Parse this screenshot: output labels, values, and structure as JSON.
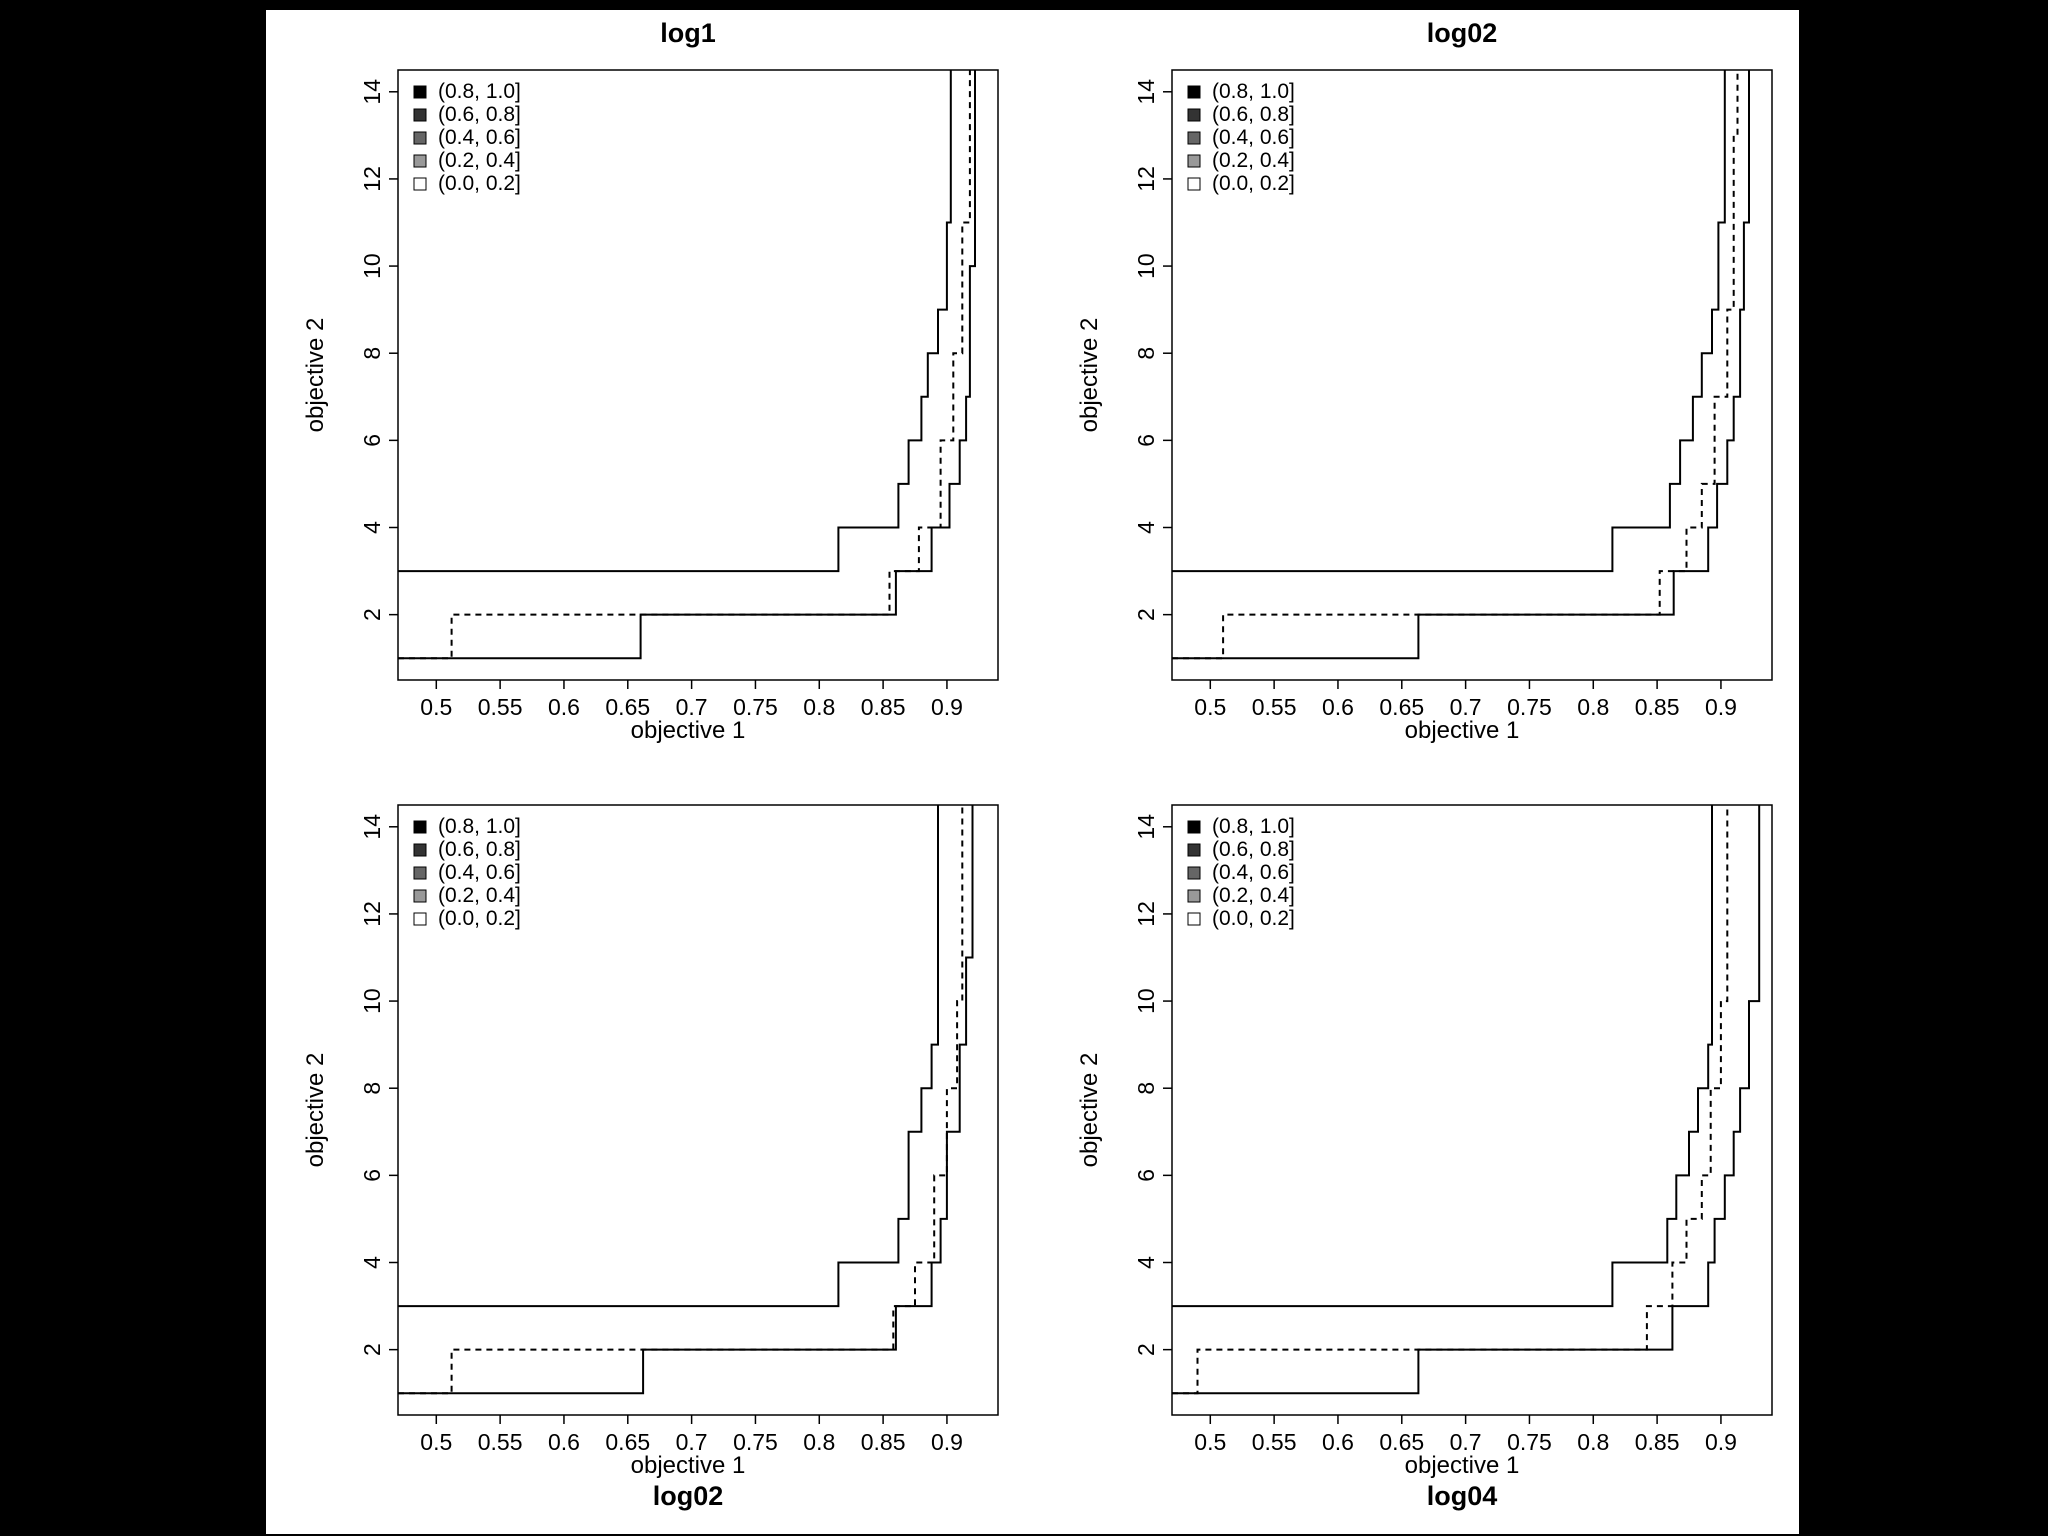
{
  "chart_data": [
    {
      "type": "line",
      "title": "log1",
      "xlabel": "objective 1",
      "ylabel": "objective 2",
      "xlim": [
        0.47,
        0.94
      ],
      "ylim": [
        0.5,
        14.5
      ],
      "xticks": [
        "0.5",
        "0.55",
        "0.6",
        "0.65",
        "0.7",
        "0.75",
        "0.8",
        "0.85",
        "0.9"
      ],
      "yticks": [
        "2",
        "4",
        "6",
        "8",
        "10",
        "12",
        "14"
      ],
      "legend": {
        "position": "top-left",
        "entries": [
          "(0.8, 1.0]",
          "(0.6, 0.8]",
          "(0.4, 0.6]",
          "(0.2, 0.4]",
          "(0.0, 0.2]"
        ],
        "colors": [
          "#000000",
          "#333333",
          "#666666",
          "#999999",
          "#ffffff"
        ]
      },
      "series": [
        {
          "style": "solid",
          "points": [
            [
              0.47,
              1
            ],
            [
              0.66,
              1
            ],
            [
              0.66,
              2
            ],
            [
              0.86,
              2
            ],
            [
              0.86,
              3
            ],
            [
              0.888,
              3
            ],
            [
              0.888,
              4
            ],
            [
              0.902,
              4
            ],
            [
              0.902,
              5
            ],
            [
              0.91,
              5
            ],
            [
              0.91,
              6
            ],
            [
              0.915,
              6
            ],
            [
              0.915,
              7
            ],
            [
              0.918,
              7
            ],
            [
              0.918,
              10
            ],
            [
              0.922,
              10
            ],
            [
              0.922,
              11
            ],
            [
              0.922,
              14.5
            ]
          ]
        },
        {
          "style": "dashed",
          "points": [
            [
              0.47,
              1
            ],
            [
              0.512,
              1
            ],
            [
              0.512,
              2
            ],
            [
              0.855,
              2
            ],
            [
              0.855,
              3
            ],
            [
              0.878,
              3
            ],
            [
              0.878,
              4
            ],
            [
              0.895,
              4
            ],
            [
              0.895,
              6
            ],
            [
              0.905,
              6
            ],
            [
              0.905,
              8
            ],
            [
              0.912,
              8
            ],
            [
              0.912,
              11
            ],
            [
              0.918,
              11
            ],
            [
              0.918,
              14.5
            ]
          ]
        },
        {
          "style": "solid",
          "points": [
            [
              0.47,
              3
            ],
            [
              0.815,
              3
            ],
            [
              0.815,
              4
            ],
            [
              0.862,
              4
            ],
            [
              0.862,
              5
            ],
            [
              0.87,
              5
            ],
            [
              0.87,
              6
            ],
            [
              0.88,
              6
            ],
            [
              0.88,
              7
            ],
            [
              0.885,
              7
            ],
            [
              0.885,
              8
            ],
            [
              0.893,
              8
            ],
            [
              0.893,
              9
            ],
            [
              0.9,
              9
            ],
            [
              0.9,
              11
            ],
            [
              0.903,
              11
            ],
            [
              0.903,
              14.5
            ]
          ]
        }
      ]
    },
    {
      "type": "line",
      "title": "log02",
      "xlabel": "objective 1",
      "ylabel": "objective 2",
      "xlim": [
        0.47,
        0.94
      ],
      "ylim": [
        0.5,
        14.5
      ],
      "xticks": [
        "0.5",
        "0.55",
        "0.6",
        "0.65",
        "0.7",
        "0.75",
        "0.8",
        "0.85",
        "0.9"
      ],
      "yticks": [
        "2",
        "4",
        "6",
        "8",
        "10",
        "12",
        "14"
      ],
      "legend": {
        "position": "top-left",
        "entries": [
          "(0.8, 1.0]",
          "(0.6, 0.8]",
          "(0.4, 0.6]",
          "(0.2, 0.4]",
          "(0.0, 0.2]"
        ],
        "colors": [
          "#000000",
          "#333333",
          "#666666",
          "#999999",
          "#ffffff"
        ]
      },
      "series": [
        {
          "style": "solid",
          "points": [
            [
              0.47,
              1
            ],
            [
              0.663,
              1
            ],
            [
              0.663,
              2
            ],
            [
              0.863,
              2
            ],
            [
              0.863,
              3
            ],
            [
              0.89,
              3
            ],
            [
              0.89,
              4
            ],
            [
              0.897,
              4
            ],
            [
              0.897,
              5
            ],
            [
              0.905,
              5
            ],
            [
              0.905,
              6
            ],
            [
              0.91,
              6
            ],
            [
              0.91,
              7
            ],
            [
              0.915,
              7
            ],
            [
              0.915,
              9
            ],
            [
              0.918,
              9
            ],
            [
              0.918,
              11
            ],
            [
              0.922,
              11
            ],
            [
              0.922,
              14.5
            ]
          ]
        },
        {
          "style": "dashed",
          "points": [
            [
              0.47,
              1
            ],
            [
              0.51,
              1
            ],
            [
              0.51,
              2
            ],
            [
              0.852,
              2
            ],
            [
              0.852,
              3
            ],
            [
              0.873,
              3
            ],
            [
              0.873,
              4
            ],
            [
              0.885,
              4
            ],
            [
              0.885,
              5
            ],
            [
              0.895,
              5
            ],
            [
              0.895,
              7
            ],
            [
              0.905,
              7
            ],
            [
              0.905,
              9
            ],
            [
              0.91,
              9
            ],
            [
              0.91,
              13
            ],
            [
              0.913,
              13
            ],
            [
              0.913,
              14.5
            ]
          ]
        },
        {
          "style": "solid",
          "points": [
            [
              0.47,
              3
            ],
            [
              0.815,
              3
            ],
            [
              0.815,
              4
            ],
            [
              0.86,
              4
            ],
            [
              0.86,
              5
            ],
            [
              0.868,
              5
            ],
            [
              0.868,
              6
            ],
            [
              0.878,
              6
            ],
            [
              0.878,
              7
            ],
            [
              0.885,
              7
            ],
            [
              0.885,
              8
            ],
            [
              0.893,
              8
            ],
            [
              0.893,
              9
            ],
            [
              0.898,
              9
            ],
            [
              0.898,
              11
            ],
            [
              0.903,
              11
            ],
            [
              0.903,
              14.5
            ]
          ]
        }
      ]
    },
    {
      "type": "line",
      "title": "log02",
      "xlabel": "objective 1",
      "ylabel": "objective 2",
      "xlim": [
        0.47,
        0.94
      ],
      "ylim": [
        0.5,
        14.5
      ],
      "xticks": [
        "0.5",
        "0.55",
        "0.6",
        "0.65",
        "0.7",
        "0.75",
        "0.8",
        "0.85",
        "0.9"
      ],
      "yticks": [
        "2",
        "4",
        "6",
        "8",
        "10",
        "12",
        "14"
      ],
      "legend": {
        "position": "top-left",
        "entries": [
          "(0.8, 1.0]",
          "(0.6, 0.8]",
          "(0.4, 0.6]",
          "(0.2, 0.4]",
          "(0.0, 0.2]"
        ],
        "colors": [
          "#000000",
          "#333333",
          "#666666",
          "#999999",
          "#ffffff"
        ]
      },
      "series": [
        {
          "style": "solid",
          "points": [
            [
              0.47,
              1
            ],
            [
              0.662,
              1
            ],
            [
              0.662,
              2
            ],
            [
              0.86,
              2
            ],
            [
              0.86,
              3
            ],
            [
              0.888,
              3
            ],
            [
              0.888,
              4
            ],
            [
              0.895,
              4
            ],
            [
              0.895,
              5
            ],
            [
              0.9,
              5
            ],
            [
              0.9,
              7
            ],
            [
              0.91,
              7
            ],
            [
              0.91,
              9
            ],
            [
              0.915,
              9
            ],
            [
              0.915,
              11
            ],
            [
              0.92,
              11
            ],
            [
              0.92,
              14.5
            ]
          ]
        },
        {
          "style": "dashed",
          "points": [
            [
              0.47,
              1
            ],
            [
              0.512,
              1
            ],
            [
              0.512,
              2
            ],
            [
              0.858,
              2
            ],
            [
              0.858,
              3
            ],
            [
              0.875,
              3
            ],
            [
              0.875,
              4
            ],
            [
              0.89,
              4
            ],
            [
              0.89,
              6
            ],
            [
              0.9,
              6
            ],
            [
              0.9,
              8
            ],
            [
              0.908,
              8
            ],
            [
              0.908,
              10
            ],
            [
              0.912,
              10
            ],
            [
              0.912,
              14.5
            ]
          ]
        },
        {
          "style": "solid",
          "points": [
            [
              0.47,
              3
            ],
            [
              0.815,
              3
            ],
            [
              0.815,
              4
            ],
            [
              0.862,
              4
            ],
            [
              0.862,
              5
            ],
            [
              0.87,
              5
            ],
            [
              0.87,
              7
            ],
            [
              0.88,
              7
            ],
            [
              0.88,
              8
            ],
            [
              0.888,
              8
            ],
            [
              0.888,
              9
            ],
            [
              0.893,
              9
            ],
            [
              0.893,
              14.5
            ]
          ]
        }
      ]
    },
    {
      "type": "line",
      "title": "log04",
      "xlabel": "objective 1",
      "ylabel": "objective 2",
      "xlim": [
        0.47,
        0.94
      ],
      "ylim": [
        0.5,
        14.5
      ],
      "xticks": [
        "0.5",
        "0.55",
        "0.6",
        "0.65",
        "0.7",
        "0.75",
        "0.8",
        "0.85",
        "0.9"
      ],
      "yticks": [
        "2",
        "4",
        "6",
        "8",
        "10",
        "12",
        "14"
      ],
      "legend": {
        "position": "top-left",
        "entries": [
          "(0.8, 1.0]",
          "(0.6, 0.8]",
          "(0.4, 0.6]",
          "(0.2, 0.4]",
          "(0.0, 0.2]"
        ],
        "colors": [
          "#000000",
          "#333333",
          "#666666",
          "#999999",
          "#ffffff"
        ]
      },
      "series": [
        {
          "style": "solid",
          "points": [
            [
              0.47,
              1
            ],
            [
              0.663,
              1
            ],
            [
              0.663,
              2
            ],
            [
              0.862,
              2
            ],
            [
              0.862,
              3
            ],
            [
              0.89,
              3
            ],
            [
              0.89,
              4
            ],
            [
              0.895,
              4
            ],
            [
              0.895,
              5
            ],
            [
              0.903,
              5
            ],
            [
              0.903,
              6
            ],
            [
              0.91,
              6
            ],
            [
              0.91,
              7
            ],
            [
              0.915,
              7
            ],
            [
              0.915,
              8
            ],
            [
              0.922,
              8
            ],
            [
              0.922,
              10
            ],
            [
              0.93,
              10
            ],
            [
              0.93,
              14.5
            ]
          ]
        },
        {
          "style": "dashed",
          "points": [
            [
              0.47,
              1
            ],
            [
              0.49,
              1
            ],
            [
              0.49,
              2
            ],
            [
              0.842,
              2
            ],
            [
              0.842,
              3
            ],
            [
              0.862,
              3
            ],
            [
              0.862,
              4
            ],
            [
              0.873,
              4
            ],
            [
              0.873,
              5
            ],
            [
              0.885,
              5
            ],
            [
              0.885,
              6
            ],
            [
              0.892,
              6
            ],
            [
              0.892,
              8
            ],
            [
              0.9,
              8
            ],
            [
              0.9,
              10
            ],
            [
              0.905,
              10
            ],
            [
              0.905,
              14.5
            ]
          ]
        },
        {
          "style": "solid",
          "points": [
            [
              0.47,
              3
            ],
            [
              0.815,
              3
            ],
            [
              0.815,
              4
            ],
            [
              0.858,
              4
            ],
            [
              0.858,
              5
            ],
            [
              0.865,
              5
            ],
            [
              0.865,
              6
            ],
            [
              0.875,
              6
            ],
            [
              0.875,
              7
            ],
            [
              0.882,
              7
            ],
            [
              0.882,
              8
            ],
            [
              0.89,
              8
            ],
            [
              0.89,
              9
            ],
            [
              0.893,
              9
            ],
            [
              0.893,
              14.5
            ]
          ]
        }
      ]
    }
  ]
}
